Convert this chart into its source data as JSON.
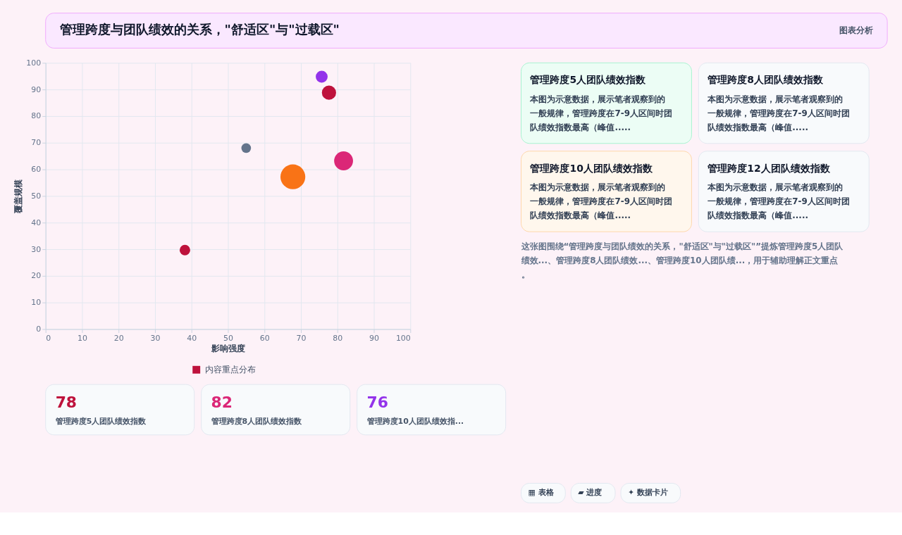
{
  "chart_data": [
    {
      "type": "bubble",
      "title": "管理跨度与团队绩效的关系，\"舒适区\"与\"过载区\"",
      "xlabel": "影响强度",
      "ylabel": "覆盖规模",
      "x": [
        38.2,
        55,
        67.8,
        75.7,
        77.7,
        81.7
      ],
      "series": [
        {
          "name": "内容重点分布",
          "color": "#be123c",
          "colors": [
            "#be123c",
            "#64748b",
            "#f97316",
            "#9333ea",
            "#be123c",
            "#db2777"
          ],
          "values": [
            29.7,
            68,
            57.2,
            94.8,
            88.8,
            63.2
          ],
          "sizes": [
            0.18,
            0.15,
            1,
            0.23,
            0.33,
            0.58
          ]
        }
      ],
      "xlim": [
        0,
        100
      ],
      "xticks": [
        0,
        10,
        20,
        30,
        40,
        50,
        60,
        70,
        80,
        90,
        100
      ],
      "ylim": [
        0,
        100
      ],
      "yticks": [
        0,
        10,
        20,
        30,
        40,
        50,
        60,
        70,
        80,
        90,
        100
      ],
      "grid": true,
      "legend": "bottom"
    },
    {
      "type": "other",
      "title": "图表分析",
      "annotations": [
        "管理跨度5人团队绩效指数",
        "本图为示意数据，展示笔者观察到的一般规律，管理跨度在7-9人区间时团队绩效指数最高（峰值.....",
        "管理跨度8人团队绩效指数",
        "本图为示意数据，展示笔者观察到的一般规律，管理跨度在7-9人区间时团队绩效指数最高（峰值.....",
        "管理跨度10人团队绩效指数",
        "本图为示意数据，展示笔者观察到的一般规律，管理跨度在7-9人区间时团队绩效指数最高（峰值.....",
        "管理跨度12人团队绩效指数",
        "本图为示意数据，展示笔者观察到的一般规律，管理跨度在7-9人区间时团队绩效指数最高（峰值.....",
        "这张图围绕“管理跨度与团队绩效的关系，\"舒适区\"与\"过载区\"”提炼管理跨度5人团队绩效...、管理跨度8人团队绩效...、管理跨度10人团队绩...，用于辅助理解正文重点。",
        "▦ 表格",
        "▰ 进度",
        "✦ 数据卡片"
      ]
    },
    {
      "type": "other",
      "annotations": [
        "78",
        "管理跨度5人团队绩效指数",
        "82",
        "管理跨度8人团队绩效指数",
        "76",
        "管理跨度10人团队绩效指..."
      ]
    }
  ]
}
